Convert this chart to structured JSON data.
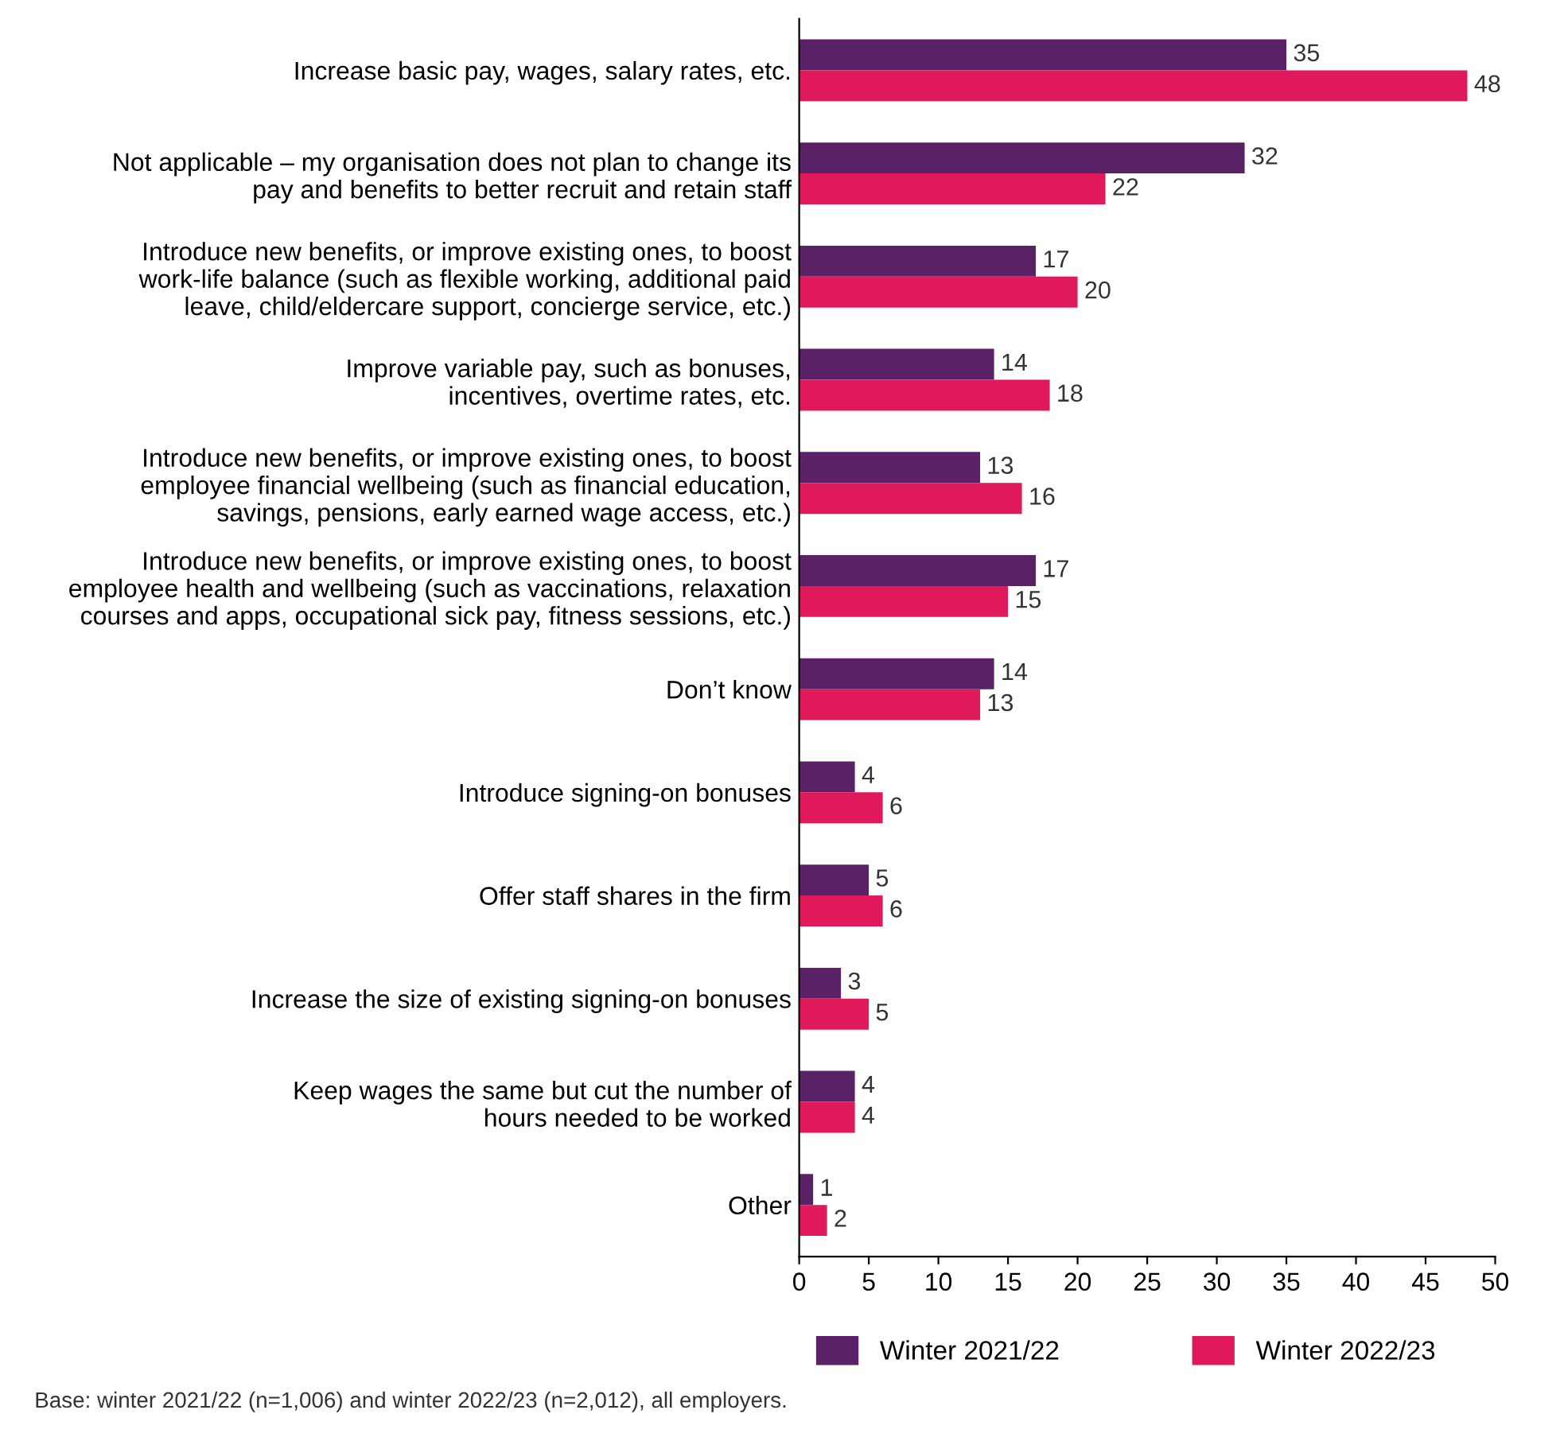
{
  "chart_data": {
    "type": "bar",
    "orientation": "horizontal",
    "categories": [
      "Increase basic pay, wages, salary rates, etc.",
      "Not applicable – my organisation does not plan to change its\npay and benefits to better recruit and retain staff",
      "Introduce new benefits, or improve existing ones, to boost\nwork-life balance (such as flexible working, additional paid\nleave, child/eldercare support, concierge service, etc.)",
      "Improve variable pay, such as bonuses,\nincentives, overtime rates, etc.",
      "Introduce new benefits, or improve existing ones, to boost\nemployee financial wellbeing (such as financial education,\nsavings, pensions, early earned wage access, etc.)",
      "Introduce new benefits, or improve existing ones, to boost\nemployee health and wellbeing (such as vaccinations, relaxation\ncourses and apps, occupational sick pay, fitness sessions, etc.)",
      "Don’t know",
      "Introduce signing-on bonuses",
      "Offer staff shares in the firm",
      "Increase the size of existing signing-on bonuses",
      "Keep wages the same but cut the number of\nhours needed to be worked",
      "Other"
    ],
    "series": [
      {
        "name": "Winter 2021/22",
        "color": "#5b2166",
        "values": [
          35,
          32,
          17,
          14,
          13,
          17,
          14,
          4,
          5,
          3,
          4,
          1
        ]
      },
      {
        "name": "Winter 2022/23",
        "color": "#e0195a",
        "values": [
          48,
          22,
          20,
          18,
          16,
          15,
          13,
          6,
          6,
          5,
          4,
          2
        ]
      }
    ],
    "xlim": [
      0,
      50
    ],
    "xticks": [
      0,
      5,
      10,
      15,
      20,
      25,
      30,
      35,
      40,
      45,
      50
    ],
    "data_labels": true,
    "grid": false,
    "legend": "bottom",
    "annotations": [
      "Base: winter 2021/22 (n=1,006) and winter 2022/23 (n=2,012), all employers."
    ]
  }
}
